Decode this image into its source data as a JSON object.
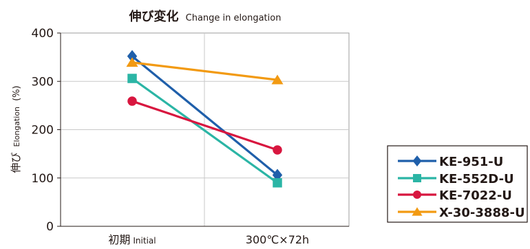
{
  "chart_data": {
    "type": "line",
    "title_jp": "伸び変化",
    "title_en": "Change in elongation",
    "ylabel_jp": "伸び",
    "ylabel_en": "Elongation",
    "ylabel_unit": "(%)",
    "categories": [
      {
        "jp": "初期",
        "en": "Initial"
      },
      {
        "jp": "300℃×72h",
        "en": ""
      }
    ],
    "ylim": [
      0,
      400
    ],
    "yticks": [
      0,
      100,
      200,
      300,
      400
    ],
    "grid": true,
    "legend_position": "bottom-right",
    "series": [
      {
        "name": "KE-951-U",
        "values": [
          352,
          106
        ],
        "color": "#1f5faa",
        "marker": "diamond"
      },
      {
        "name": "KE-552D-U",
        "values": [
          306,
          90
        ],
        "color": "#2bb5a5",
        "marker": "square"
      },
      {
        "name": "KE-7022-U",
        "values": [
          259,
          158
        ],
        "color": "#d8163f",
        "marker": "circle"
      },
      {
        "name": "X-30-3888-U",
        "values": [
          339,
          303
        ],
        "color": "#f29a12",
        "marker": "triangle"
      }
    ]
  }
}
